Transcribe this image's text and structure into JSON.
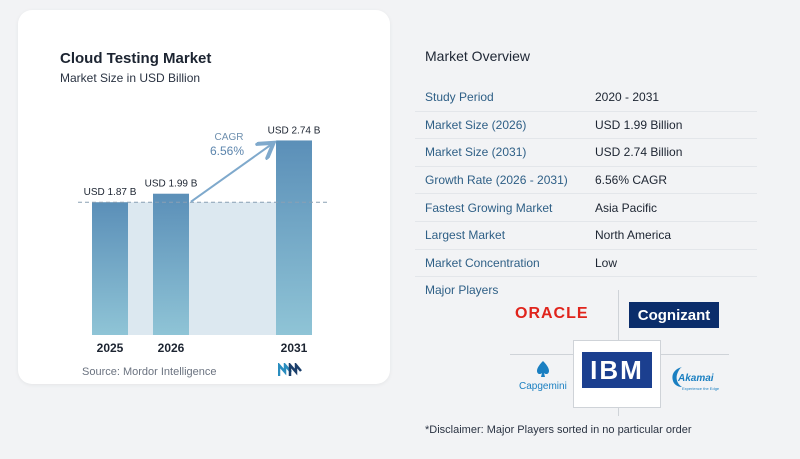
{
  "chart_data": {
    "type": "bar",
    "title": "Cloud Testing Market",
    "subtitle": "Market Size in USD Billion",
    "categories": [
      "2025",
      "2026",
      "2031"
    ],
    "values": [
      1.87,
      1.99,
      2.74
    ],
    "value_labels": [
      "USD 1.87 B",
      "USD 1.99 B",
      "USD 2.74 B"
    ],
    "ylim": [
      0,
      3.0
    ],
    "cagr_label": "CAGR",
    "cagr_value": "6.56%",
    "grid": false,
    "colors": {
      "bar_top": "#5b8fb8",
      "bar_bottom": "#8fc4d6",
      "shade": "#dce8f0",
      "arrow": "#7fa9cc",
      "dashed": "#8aa0b4"
    }
  },
  "source_text": "Source:  Mordor Intelligence",
  "overview": {
    "title": "Market Overview",
    "rows": [
      {
        "key": "Study Period",
        "value": "2020 - 2031"
      },
      {
        "key": "Market Size (2026)",
        "value": "USD 1.99 Billion"
      },
      {
        "key": "Market Size (2031)",
        "value": "USD 2.74 Billion"
      },
      {
        "key": "Growth Rate (2026 - 2031)",
        "value": "6.56% CAGR"
      },
      {
        "key": "Fastest Growing Market",
        "value": "Asia Pacific"
      },
      {
        "key": "Largest Market",
        "value": "North America"
      },
      {
        "key": "Market Concentration",
        "value": "Low"
      }
    ]
  },
  "players": {
    "title": "Major Players",
    "names": [
      "ORACLE",
      "Cognizant",
      "IBM",
      "Capgemini",
      "Akamai"
    ],
    "akamai_tagline": "Experience the Edge"
  },
  "disclaimer": "*Disclaimer: Major Players sorted in no particular order"
}
